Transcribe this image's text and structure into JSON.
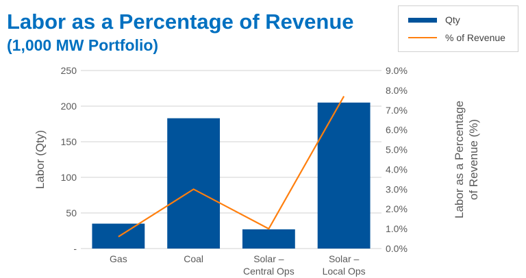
{
  "chart_data": {
    "type": "bar",
    "title": "Labor as a Percentage of Revenue",
    "subtitle": "(1,000 MW Portfolio)",
    "categories": [
      [
        "Gas"
      ],
      [
        "Coal"
      ],
      [
        "Solar –",
        "Central Ops"
      ],
      [
        "Solar –",
        "Local Ops"
      ]
    ],
    "series": [
      {
        "name": "Qty",
        "type": "bar",
        "axis": "left",
        "color": "#00539b",
        "values": [
          35,
          183,
          27,
          205
        ]
      },
      {
        "name": "% of Revenue",
        "type": "line",
        "axis": "right",
        "color": "#ff7f0e",
        "values": [
          0.6,
          3.0,
          1.0,
          7.7
        ]
      }
    ],
    "ylabel": "Labor (Qty)",
    "y2label": [
      "Labor as a Percentage",
      "of Revenue (%)"
    ],
    "ylim": [
      0,
      250
    ],
    "yticks": [
      "-",
      "50",
      "100",
      "150",
      "200",
      "250"
    ],
    "y2lim": [
      0,
      9
    ],
    "y2ticks": [
      "0.0%",
      "1.0%",
      "2.0%",
      "3.0%",
      "4.0%",
      "5.0%",
      "6.0%",
      "7.0%",
      "8.0%",
      "9.0%"
    ],
    "grid": true,
    "legend_position": "top-right"
  }
}
